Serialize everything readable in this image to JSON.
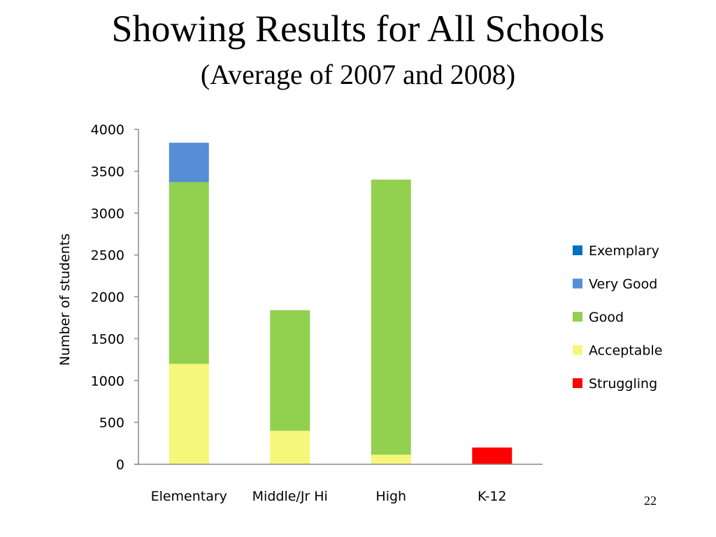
{
  "slide": {
    "title": "Showing Results for All Schools",
    "subtitle": "(Average of 2007 and 2008)",
    "page_number": "22"
  },
  "chart_data": {
    "type": "bar",
    "stacked": true,
    "categories": [
      "Elementary",
      "Middle/Jr Hi",
      "High",
      "K-12"
    ],
    "series": [
      {
        "name": "Struggling",
        "color": "#ff0000",
        "values": [
          0,
          0,
          0,
          200
        ]
      },
      {
        "name": "Acceptable",
        "color": "#f5f77a",
        "values": [
          1200,
          400,
          115,
          0
        ]
      },
      {
        "name": "Good",
        "color": "#92d050",
        "values": [
          2170,
          1440,
          3285,
          0
        ]
      },
      {
        "name": "Very Good",
        "color": "#558ed5",
        "values": [
          470,
          0,
          0,
          0
        ]
      },
      {
        "name": "Exemplary",
        "color": "#0070c0",
        "values": [
          0,
          0,
          0,
          0
        ]
      }
    ],
    "legend_order": [
      "Exemplary",
      "Very Good",
      "Good",
      "Acceptable",
      "Struggling"
    ],
    "ylabel": "Number of students",
    "xlabel": "",
    "ylim": [
      0,
      4000
    ],
    "yticks": [
      0,
      500,
      1000,
      1500,
      2000,
      2500,
      3000,
      3500,
      4000
    ],
    "grid": false,
    "legend_position": "right"
  }
}
